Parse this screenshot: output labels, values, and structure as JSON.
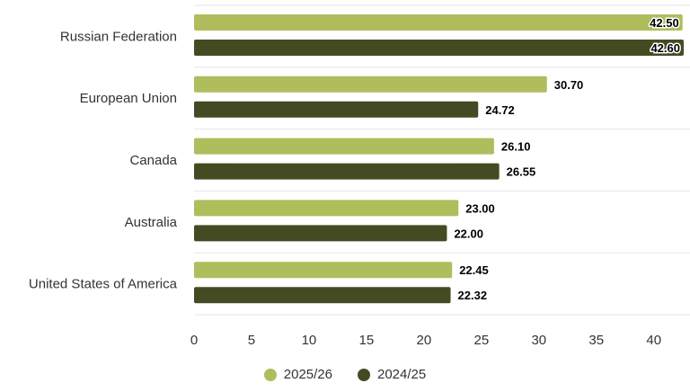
{
  "chart_data": {
    "type": "bar",
    "orientation": "horizontal",
    "categories": [
      "Russian Federation",
      "European Union",
      "Canada",
      "Australia",
      "United States of America"
    ],
    "series": [
      {
        "name": "2025/26",
        "color": "#afbd5c",
        "values": [
          42.5,
          30.7,
          26.1,
          23.0,
          22.45
        ]
      },
      {
        "name": "2024/25",
        "color": "#444b23",
        "values": [
          42.6,
          24.72,
          26.55,
          22.0,
          22.32
        ]
      }
    ],
    "xticks": [
      "0",
      "5",
      "10",
      "15",
      "20",
      "25",
      "30",
      "35",
      "40"
    ],
    "xlim": [
      0,
      42.6
    ],
    "grid": true,
    "legend_position": "bottom"
  }
}
